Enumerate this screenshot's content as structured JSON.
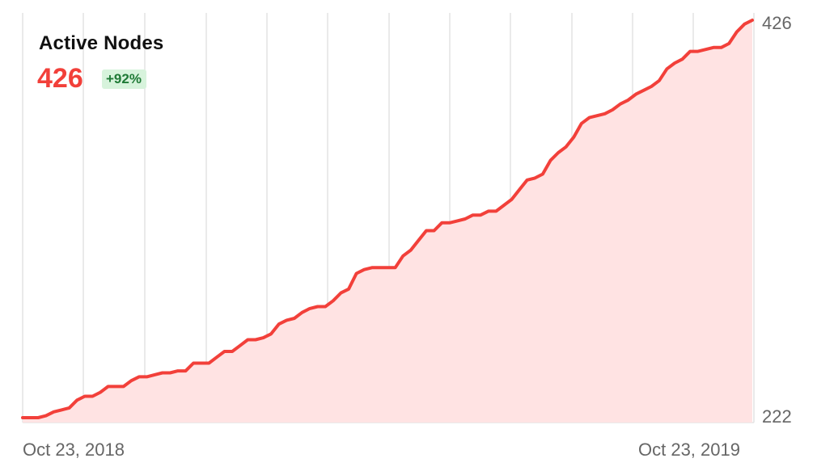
{
  "header": {
    "title": "Active Nodes",
    "current_value": "426",
    "change_badge": "+92%"
  },
  "colors": {
    "line": "#f2403a",
    "fill": "#ffe3e3",
    "grid": "#e3e3e3",
    "badge_bg": "#d7f3dc",
    "badge_text": "#1f7a36"
  },
  "chart_data": {
    "type": "area",
    "title": "Active Nodes",
    "y_tick_labels": [
      "426",
      "222"
    ],
    "x_tick_labels": [
      "Oct 23, 2018",
      "Oct 23, 2019"
    ],
    "ylim": [
      222,
      426
    ],
    "grid": true,
    "values": [
      222,
      222,
      222,
      223,
      225,
      226,
      227,
      231,
      233,
      233,
      235,
      238,
      238,
      238,
      241,
      243,
      243,
      244,
      245,
      245,
      246,
      246,
      250,
      250,
      250,
      253,
      256,
      256,
      259,
      262,
      262,
      263,
      265,
      270,
      272,
      273,
      276,
      278,
      279,
      279,
      282,
      286,
      288,
      296,
      298,
      299,
      299,
      299,
      299,
      305,
      308,
      313,
      318,
      318,
      322,
      322,
      323,
      324,
      326,
      326,
      328,
      328,
      331,
      334,
      339,
      344,
      345,
      347,
      354,
      358,
      361,
      366,
      373,
      376,
      377,
      378,
      380,
      383,
      385,
      388,
      390,
      392,
      395,
      401,
      404,
      406,
      410,
      410,
      411,
      412,
      412,
      414,
      420,
      424,
      426
    ]
  }
}
